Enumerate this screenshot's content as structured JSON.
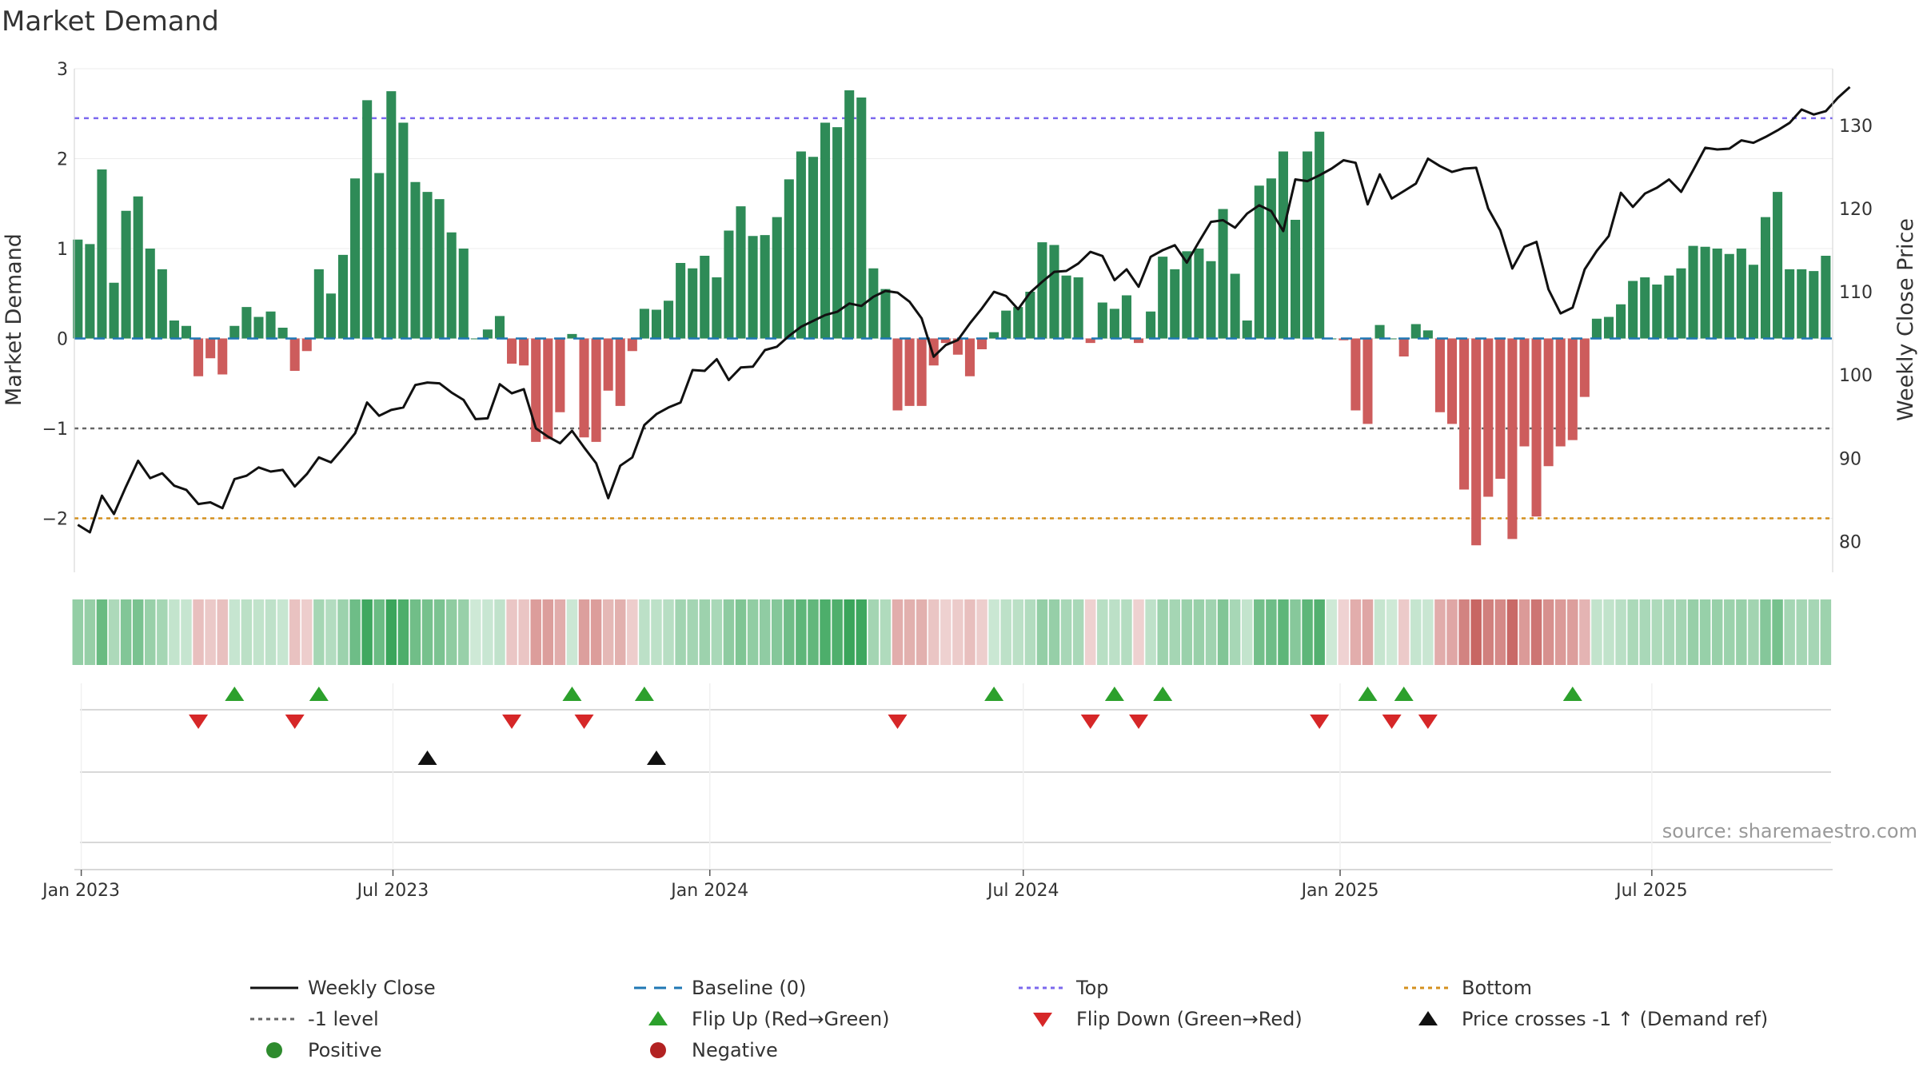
{
  "chart_data": {
    "type": "bar",
    "title": "Market Demand",
    "ylabel_left": "Market Demand",
    "ylabel_right": "Weekly Close Price",
    "ylim_left": [
      -2.6,
      3.0
    ],
    "yticks_left": [
      3,
      2,
      1,
      0,
      -1,
      -2
    ],
    "yticks_left_labels": [
      "3",
      "2",
      "1",
      "0",
      "−1",
      "−2"
    ],
    "ylim_right": [
      76.3,
      136.8
    ],
    "yticks_right": [
      130,
      120,
      110,
      100,
      90,
      80
    ],
    "yticks_right_labels": [
      "130",
      "120",
      "110",
      "100",
      "90",
      "80"
    ],
    "x_start": "2022-12-30",
    "x_step_days": 7,
    "x_range_days": [
      -2,
      1019
    ],
    "xtick_days": [
      2,
      183,
      367,
      549,
      733,
      914
    ],
    "xtick_labels": [
      "Jan 2023",
      "Jul 2023",
      "Jan 2024",
      "Jul 2024",
      "Jan 2025",
      "Jul 2025"
    ],
    "reference_lines": [
      {
        "name": "Top",
        "value": 2.45,
        "color": "#7b68ee",
        "dash": "6,6"
      },
      {
        "name": "-1 level",
        "value": -1.0,
        "color": "#666666",
        "dash": "5,5"
      },
      {
        "name": "Bottom",
        "value": -2.0,
        "color": "#d4901e",
        "dash": "5,5"
      },
      {
        "name": "Baseline (0)",
        "value": 0.0,
        "color": "#1f77b4",
        "dash": "14,10"
      }
    ],
    "demand": [
      1.1,
      1.05,
      1.88,
      0.62,
      1.42,
      1.58,
      1.0,
      0.77,
      0.2,
      0.14,
      -0.42,
      -0.22,
      -0.4,
      0.14,
      0.35,
      0.24,
      0.3,
      0.12,
      -0.36,
      -0.14,
      0.77,
      0.5,
      0.93,
      1.78,
      2.65,
      1.84,
      2.75,
      2.4,
      1.74,
      1.63,
      1.55,
      1.18,
      1.0,
      0.0,
      0.1,
      0.25,
      -0.28,
      -0.3,
      -1.15,
      -1.12,
      -0.82,
      0.05,
      -1.1,
      -1.15,
      -0.58,
      -0.75,
      -0.14,
      0.33,
      0.32,
      0.42,
      0.84,
      0.78,
      0.92,
      0.68,
      1.2,
      1.47,
      1.14,
      1.15,
      1.35,
      1.77,
      2.08,
      2.02,
      2.4,
      2.35,
      2.76,
      2.68,
      0.78,
      0.55,
      -0.8,
      -0.75,
      -0.75,
      -0.3,
      -0.05,
      -0.18,
      -0.42,
      -0.12,
      0.07,
      0.31,
      0.35,
      0.52,
      1.07,
      1.04,
      0.7,
      0.68,
      -0.05,
      0.4,
      0.33,
      0.48,
      -0.05,
      0.3,
      0.91,
      0.77,
      0.97,
      1.0,
      0.86,
      1.44,
      0.72,
      0.2,
      1.7,
      1.78,
      2.08,
      1.32,
      2.08,
      2.3,
      0.0,
      -0.02,
      -0.8,
      -0.95,
      0.15,
      0.0,
      -0.2,
      0.16,
      0.09,
      -0.82,
      -0.95,
      -1.68,
      -2.3,
      -1.76,
      -1.56,
      -2.23,
      -1.2,
      -1.98,
      -1.42,
      -1.2,
      -1.13,
      -0.65,
      0.22,
      0.24,
      0.38,
      0.64,
      0.68,
      0.6,
      0.7,
      0.78,
      1.03,
      1.02,
      1.0,
      0.94,
      1.0,
      0.82,
      1.35,
      1.63,
      0.77,
      0.77,
      0.75,
      0.92
    ],
    "price": [
      82.0,
      81.1,
      85.5,
      83.3,
      86.6,
      89.7,
      87.6,
      88.2,
      86.7,
      86.2,
      84.5,
      84.7,
      84.0,
      87.5,
      87.9,
      88.9,
      88.4,
      88.6,
      86.6,
      88.1,
      90.1,
      89.5,
      91.2,
      93.0,
      96.7,
      95.1,
      95.8,
      96.1,
      98.8,
      99.1,
      99.0,
      97.9,
      97.0,
      94.7,
      94.8,
      98.9,
      97.8,
      98.3,
      93.6,
      92.6,
      91.8,
      93.3,
      91.3,
      89.4,
      85.2,
      89.1,
      90.1,
      94.0,
      95.3,
      96.1,
      96.7,
      100.6,
      100.5,
      101.9,
      99.4,
      100.9,
      101.0,
      103.0,
      103.4,
      104.7,
      105.8,
      106.5,
      107.2,
      107.6,
      108.6,
      108.3,
      109.4,
      110.1,
      109.9,
      108.8,
      106.8,
      102.2,
      103.6,
      104.2,
      106.2,
      108.0,
      110.0,
      109.5,
      107.9,
      109.9,
      111.2,
      112.4,
      112.5,
      113.4,
      114.8,
      114.3,
      111.4,
      112.7,
      110.6,
      114.2,
      115.0,
      115.6,
      113.5,
      116.0,
      118.4,
      118.6,
      117.7,
      119.4,
      120.4,
      119.7,
      117.3,
      123.5,
      123.3,
      124.0,
      124.8,
      125.8,
      125.5,
      120.5,
      124.1,
      121.2,
      122.1,
      123.0,
      126.0,
      125.1,
      124.4,
      124.8,
      124.9,
      120.0,
      117.4,
      112.8,
      115.4,
      116.0,
      110.3,
      107.4,
      108.1,
      112.7,
      114.9,
      116.7,
      121.9,
      120.2,
      121.8,
      122.5,
      123.5,
      122.0,
      124.6,
      127.3,
      127.1,
      127.2,
      128.2,
      127.9,
      128.6,
      129.4,
      130.3,
      131.9,
      131.3,
      131.7,
      133.3,
      134.6
    ],
    "flip_up_idx": [
      13,
      20,
      41,
      47,
      76,
      86,
      90,
      107,
      110,
      124
    ],
    "flip_down_idx": [
      10,
      18,
      36,
      42,
      68,
      84,
      88,
      103,
      109,
      112
    ],
    "price_cross_idx": [
      29,
      48
    ],
    "legend": [
      {
        "key": "weekly-close",
        "label": "Weekly Close",
        "type": "line",
        "color": "#111111"
      },
      {
        "key": "baseline",
        "label": "Baseline (0)",
        "type": "dash",
        "color": "#1f77b4"
      },
      {
        "key": "top",
        "label": "Top",
        "type": "dot",
        "color": "#7b68ee"
      },
      {
        "key": "bottom",
        "label": "Bottom",
        "type": "dot",
        "color": "#d4901e"
      },
      {
        "key": "minus1",
        "label": "-1 level",
        "type": "dot",
        "color": "#666666"
      },
      {
        "key": "flip-up",
        "label": "Flip Up (Red→Green)",
        "type": "tri-up",
        "color": "#2ca02c"
      },
      {
        "key": "flip-down",
        "label": "Flip Down (Green→Red)",
        "type": "tri-down",
        "color": "#d62728"
      },
      {
        "key": "price-cross",
        "label": "Price crosses -1 ↑ (Demand ref)",
        "type": "tri-up",
        "color": "#111111"
      },
      {
        "key": "positive",
        "label": "Positive",
        "type": "circle",
        "color": "#2e8b2e"
      },
      {
        "key": "negative",
        "label": "Negative",
        "type": "circle",
        "color": "#b22222"
      }
    ],
    "colors": {
      "positive_bar": "#2e8b57",
      "negative_bar": "#cd5c5c",
      "price_line": "#111111",
      "flip_up": "#2ca02c",
      "flip_down": "#d62728",
      "cross": "#111111"
    },
    "source": "source: sharemaestro.com"
  }
}
